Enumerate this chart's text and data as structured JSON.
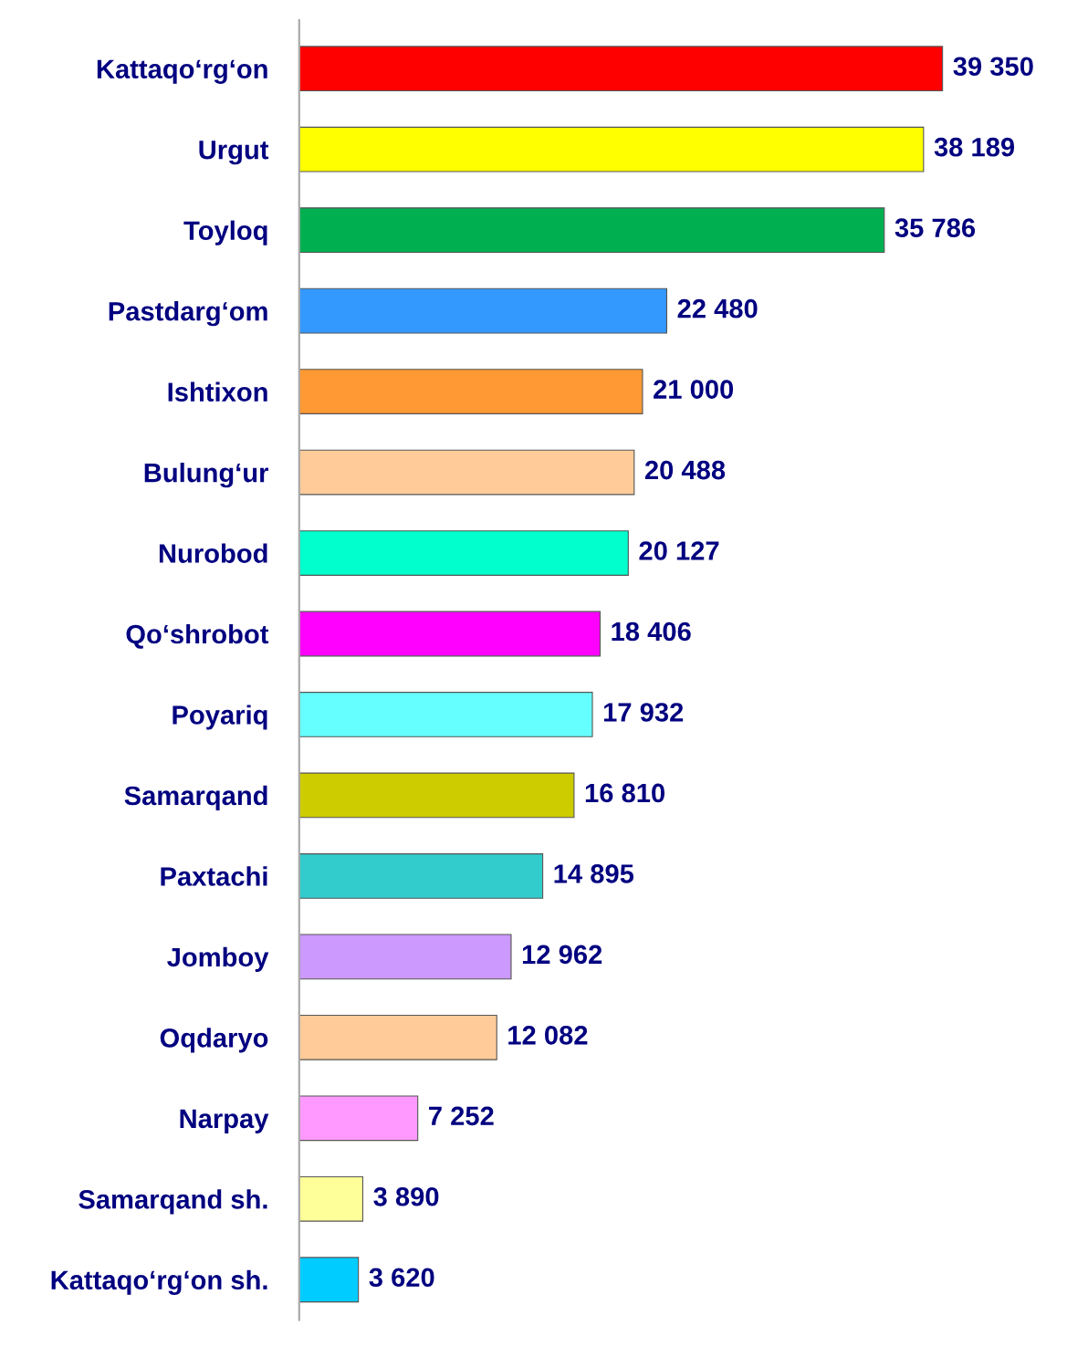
{
  "chart_data": {
    "type": "bar",
    "orientation": "horizontal",
    "categories": [
      "Kattaqo‘rg‘on",
      "Urgut",
      "Toyloq",
      "Pastdarg‘om",
      "Ishtixon",
      "Bulung‘ur",
      "Nurobod",
      "Qo‘shrobot",
      "Poyariq",
      "Samarqand",
      "Paxtachi",
      "Jomboy",
      "Oqdaryo",
      "Narpay",
      "Samarqand sh.",
      "Kattaqo‘rg‘on sh."
    ],
    "values": [
      39350,
      38189,
      35786,
      22480,
      21000,
      20488,
      20127,
      18406,
      17932,
      16810,
      14895,
      12962,
      12082,
      7252,
      3890,
      3620
    ],
    "value_labels": [
      "39 350",
      "38 189",
      "35 786",
      "22 480",
      "21 000",
      "20 488",
      "20 127",
      "18 406",
      "17 932",
      "16 810",
      "14 895",
      "12 962",
      "12 082",
      "7 252",
      "3 890",
      "3 620"
    ],
    "colors": [
      "#ff0000",
      "#ffff00",
      "#00b050",
      "#3399ff",
      "#ff9933",
      "#ffcc99",
      "#00ffcc",
      "#ff00ff",
      "#66ffff",
      "#cccc00",
      "#33cccc",
      "#cc99ff",
      "#ffcc99",
      "#ff99ff",
      "#ffff99",
      "#00ccff"
    ],
    "grid": false,
    "legend": false
  }
}
